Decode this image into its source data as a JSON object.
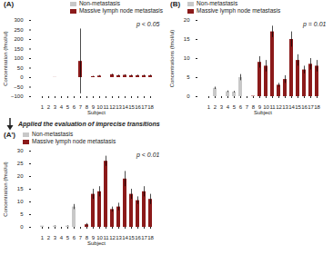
{
  "chart_data": [
    {
      "type": "bar",
      "title": "(A)",
      "categories": [
        1,
        2,
        3,
        4,
        5,
        6,
        7,
        8,
        9,
        10,
        11,
        12,
        13,
        14,
        15,
        16,
        17,
        18
      ],
      "series": [
        {
          "name": "Non-metastasis",
          "color": "#c8c8c8",
          "values": [
            0,
            0,
            0,
            0,
            0,
            0,
            0,
            0,
            0,
            0,
            0,
            0,
            0,
            0,
            0,
            0,
            0,
            0
          ],
          "errors": [
            0,
            0,
            0,
            0,
            0,
            0,
            0,
            0,
            0,
            0,
            0,
            0,
            0,
            0,
            0,
            0,
            0,
            0
          ]
        },
        {
          "name": "Massive lymph node metastasis",
          "color": "#8b1a1a",
          "values": [
            0,
            0,
            0.5,
            0,
            0,
            0,
            85,
            0,
            5,
            8,
            0,
            15,
            10,
            12,
            10,
            10,
            10,
            10
          ],
          "errors": [
            0,
            0,
            0,
            0,
            0,
            0,
            170,
            0,
            2,
            3,
            0,
            3,
            3,
            3,
            3,
            3,
            3,
            3
          ]
        }
      ],
      "annotations": [
        "p < 0.05"
      ],
      "xlabel": "Subject",
      "ylabel": "Concentration (fmol/ul)",
      "ylim": [
        -100,
        300
      ],
      "yticks": [
        -100,
        -50,
        0,
        50,
        100,
        150,
        200,
        250,
        300
      ],
      "legend": "upper right"
    },
    {
      "type": "bar",
      "title": "(B)",
      "categories": [
        1,
        2,
        3,
        4,
        5,
        6,
        7,
        8,
        9,
        10,
        11,
        12,
        13,
        14,
        15,
        16,
        17,
        18
      ],
      "series": [
        {
          "name": "Non-metastasis",
          "color": "#c8c8c8",
          "values": [
            0,
            2.2,
            0,
            1.3,
            1.2,
            5,
            0,
            0,
            0,
            0,
            0,
            0,
            0,
            0,
            0,
            0,
            0,
            0
          ],
          "errors": [
            0,
            0.3,
            0,
            0.2,
            0.2,
            0.8,
            0,
            0,
            0,
            0,
            0,
            0,
            0,
            0,
            0,
            0,
            0,
            0
          ]
        },
        {
          "name": "Massive lymph node metastasis",
          "color": "#8b1a1a",
          "values": [
            0,
            0,
            0,
            0,
            0,
            0,
            0,
            0.1,
            9,
            8,
            17,
            3,
            4.5,
            15,
            9.5,
            7,
            8.5,
            8
          ],
          "errors": [
            0,
            0,
            0,
            0,
            0,
            0,
            0,
            0,
            1.5,
            1.5,
            1.5,
            0.5,
            1,
            2,
            1.5,
            1,
            1.5,
            1.5
          ]
        }
      ],
      "annotations": [
        "p = 0.01"
      ],
      "xlabel": "Subject",
      "ylabel": "Concentrations (fmol/ul)",
      "ylim": [
        0,
        20
      ],
      "yticks": [
        0,
        5,
        10,
        15,
        20
      ],
      "legend": "upper left"
    },
    {
      "type": "bar",
      "title": "(A')",
      "subtitle": "Applied the evaluation of imprecise transitions",
      "categories": [
        1,
        2,
        3,
        4,
        5,
        6,
        7,
        8,
        9,
        10,
        11,
        12,
        13,
        14,
        15,
        16,
        17,
        18
      ],
      "series": [
        {
          "name": "Non-metastasis",
          "color": "#c8c8c8",
          "values": [
            0.5,
            0,
            0.5,
            0,
            0.5,
            8,
            0,
            0,
            0,
            0,
            0,
            0,
            0,
            0,
            0,
            0,
            0,
            0
          ],
          "errors": [
            0,
            0,
            0.1,
            0,
            0.1,
            1,
            0,
            0,
            0,
            0,
            0,
            0,
            0,
            0,
            0,
            0,
            0,
            0
          ]
        },
        {
          "name": "Massive lymph node metastasis",
          "color": "#8b1a1a",
          "values": [
            0,
            0,
            0,
            0,
            0,
            0,
            0,
            1,
            13,
            14,
            26,
            7,
            8,
            19,
            13,
            10.5,
            14,
            11
          ],
          "errors": [
            0,
            0,
            0,
            0,
            0,
            0,
            0,
            0.5,
            2,
            2,
            2,
            1,
            1.5,
            3,
            2,
            1.5,
            2,
            2
          ]
        }
      ],
      "annotations": [
        "p < 0.01"
      ],
      "xlabel": "Subject",
      "ylabel": "Concentration (fmol/ul)",
      "ylim": [
        0,
        30
      ],
      "yticks": [
        0,
        5,
        10,
        15,
        20,
        25,
        30
      ],
      "legend": "upper left"
    }
  ]
}
